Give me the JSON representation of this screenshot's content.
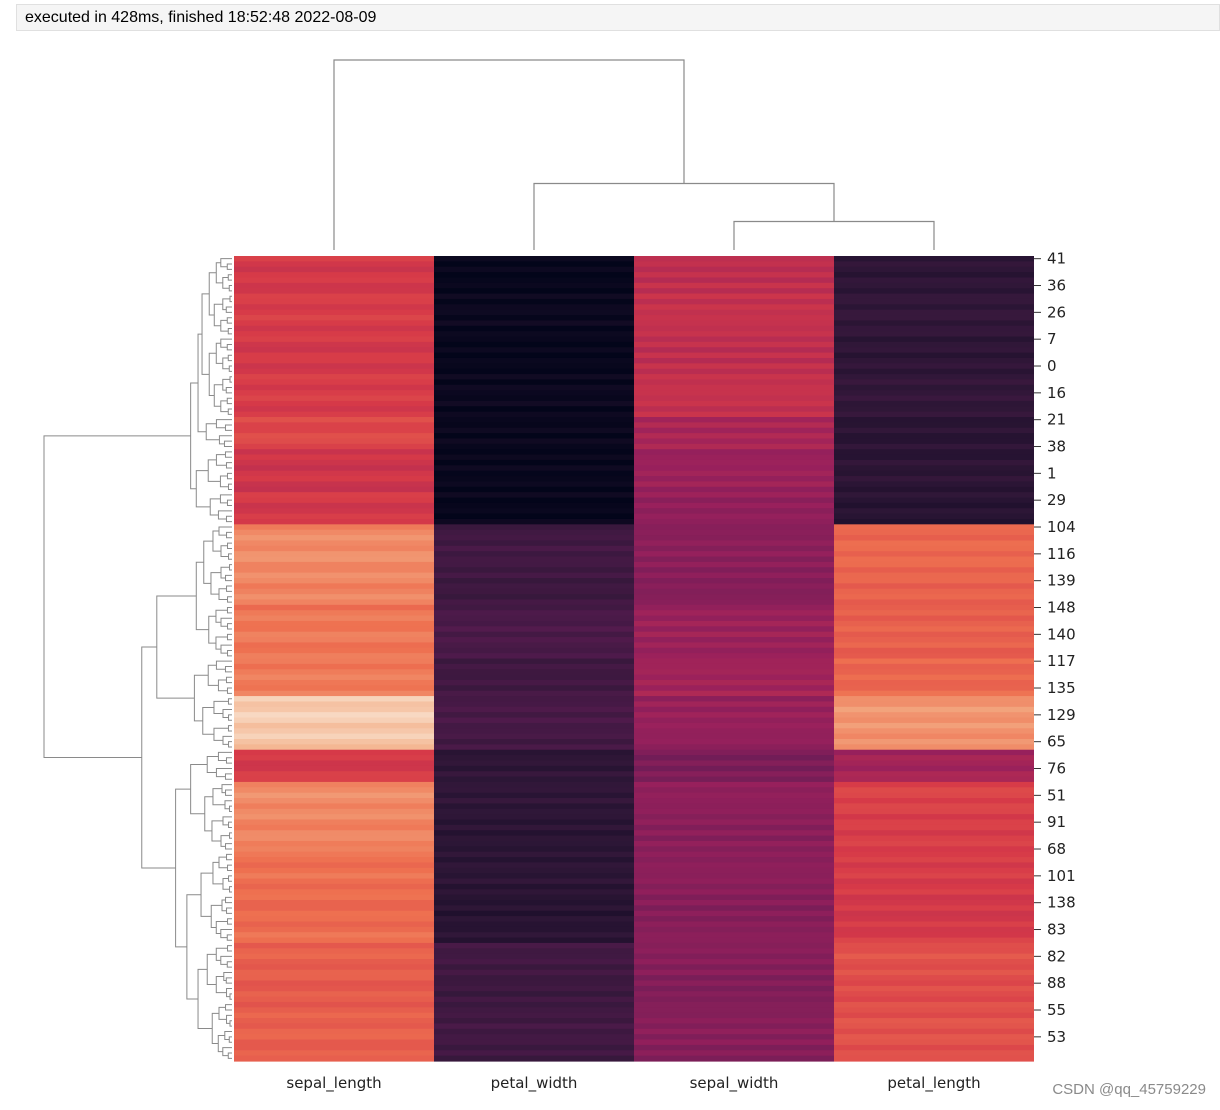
{
  "exec_info": "executed in 428ms, finished 18:52:48 2022-08-09",
  "watermark": "CSDN @qq_45759229",
  "chart_data": {
    "type": "heatmap",
    "subtype": "clustermap",
    "colormap": "rocket",
    "colorbar": false,
    "columns": [
      "sepal_length",
      "petal_width",
      "sepal_width",
      "petal_length"
    ],
    "row_ticks": [
      "41",
      "36",
      "26",
      "7",
      "0",
      "16",
      "21",
      "38",
      "1",
      "29",
      "104",
      "116",
      "139",
      "148",
      "140",
      "117",
      "135",
      "129",
      "65",
      "76",
      "51",
      "91",
      "68",
      "101",
      "138",
      "83",
      "82",
      "88",
      "55",
      "53"
    ],
    "bands": [
      {
        "rows": 30,
        "values": [
          0.6,
          0.02,
          0.55,
          0.15
        ]
      },
      {
        "rows": 6,
        "values": [
          0.65,
          0.03,
          0.5,
          0.14
        ]
      },
      {
        "rows": 8,
        "values": [
          0.57,
          0.01,
          0.45,
          0.13
        ]
      },
      {
        "rows": 6,
        "values": [
          0.6,
          0.02,
          0.44,
          0.13
        ]
      },
      {
        "rows": 15,
        "values": [
          0.8,
          0.2,
          0.41,
          0.72
        ]
      },
      {
        "rows": 10,
        "values": [
          0.76,
          0.23,
          0.45,
          0.7
        ]
      },
      {
        "rows": 7,
        "values": [
          0.78,
          0.21,
          0.48,
          0.73
        ]
      },
      {
        "rows": 10,
        "values": [
          0.93,
          0.22,
          0.44,
          0.82
        ]
      },
      {
        "rows": 6,
        "values": [
          0.6,
          0.15,
          0.38,
          0.48
        ]
      },
      {
        "rows": 13,
        "values": [
          0.8,
          0.14,
          0.42,
          0.62
        ]
      },
      {
        "rows": 17,
        "values": [
          0.74,
          0.13,
          0.41,
          0.6
        ]
      },
      {
        "rows": 22,
        "values": [
          0.7,
          0.2,
          0.4,
          0.66
        ]
      }
    ],
    "col_dendrogram": [
      {
        "a": 2,
        "b": 3,
        "h": 0.15
      },
      {
        "a": 1,
        "b": 2.5,
        "h": 0.35
      },
      {
        "a": 0,
        "b": 1.75,
        "h": 1.0
      }
    ]
  }
}
